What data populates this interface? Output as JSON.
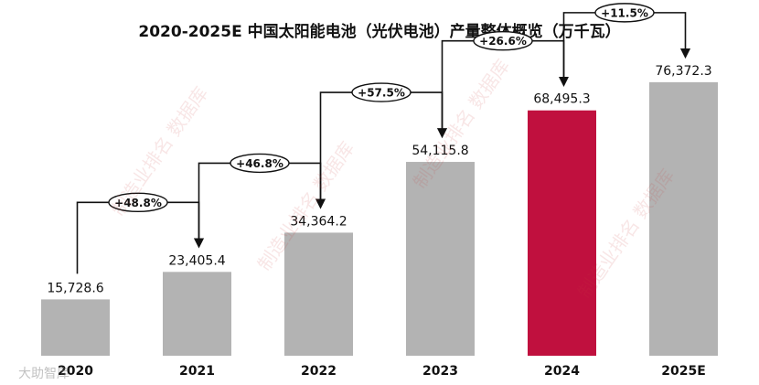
{
  "chart_data": {
    "type": "bar",
    "title": "2020-2025E 中国太阳能电池（光伏电池）产量整体概览（万千瓦）",
    "categories": [
      "2020",
      "2021",
      "2022",
      "2023",
      "2024",
      "2025E"
    ],
    "values": [
      15728.6,
      23405.4,
      34364.2,
      54115.8,
      68495.3,
      76372.3
    ],
    "value_labels": [
      "15,728.6",
      "23,405.4",
      "34,364.2",
      "54,115.8",
      "68,495.3",
      "76,372.3"
    ],
    "growth_labels": [
      "+48.8%",
      "+46.8%",
      "+57.5%",
      "+26.6%",
      "+11.5%"
    ],
    "highlight_index": 4,
    "ylim": [
      0,
      84000
    ],
    "xlabel": "",
    "ylabel": "",
    "grid": false,
    "colors": {
      "bar": "#b3b3b3",
      "highlight": "#c0103e",
      "arrow": "#111111"
    }
  },
  "watermarks": [
    "制造业排名 数据库",
    "大助智库"
  ]
}
